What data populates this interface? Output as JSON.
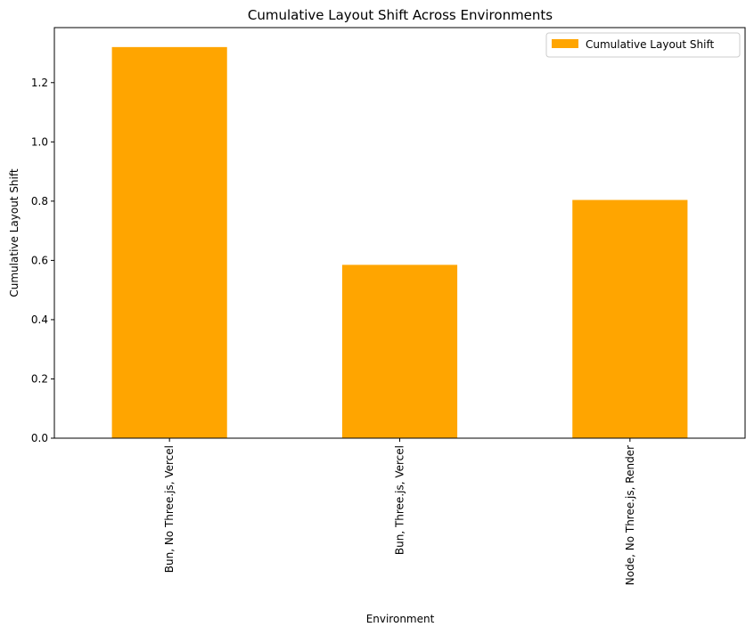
{
  "chart_data": {
    "type": "bar",
    "title": "Cumulative Layout Shift Across Environments",
    "xlabel": "Environment",
    "ylabel": "Cumulative Layout Shift",
    "categories": [
      "Bun, No Three.js, Vercel",
      "Bun, Three.js, Vercel",
      "Node, No Three.js, Render"
    ],
    "series": [
      {
        "name": "Cumulative Layout Shift",
        "values": [
          1.32,
          0.585,
          0.804
        ],
        "color": "#FFA500"
      }
    ],
    "ylim": [
      0,
      1.3857
    ],
    "yticks": [
      0.0,
      0.2,
      0.4,
      0.6,
      0.8,
      1.0,
      1.2
    ],
    "ytick_labels": [
      "0.0",
      "0.2",
      "0.4",
      "0.6",
      "0.8",
      "1.0",
      "1.2"
    ],
    "grid": false,
    "legend_position": "top-right"
  }
}
